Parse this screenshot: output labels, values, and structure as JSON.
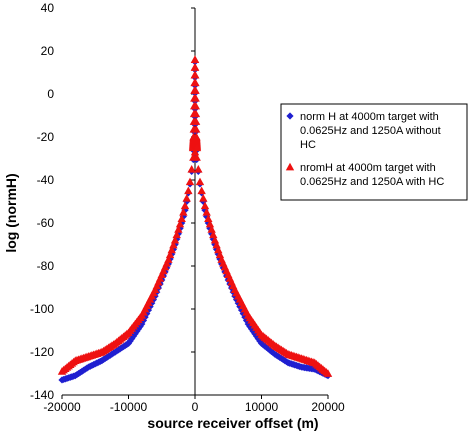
{
  "chart_data": {
    "type": "scatter",
    "xlabel": "source receiver offset (m)",
    "ylabel": "log (normH)",
    "xlim": [
      -20000,
      20000
    ],
    "ylim": [
      -140,
      40
    ],
    "xticks": [
      -20000,
      -10000,
      0,
      10000,
      20000
    ],
    "yticks": [
      -140,
      -120,
      -100,
      -80,
      -60,
      -40,
      -20,
      0,
      20,
      40
    ],
    "x_tick_labels": [
      "-20000",
      "-10000",
      "0",
      "10000",
      "20000"
    ],
    "y_tick_labels": [
      "-140",
      "-120",
      "-100",
      "-80",
      "-60",
      "-40",
      "-20",
      "0",
      "20",
      "40"
    ],
    "legend_position": "right",
    "series": [
      {
        "name": "norm H at 4000m target with 0.0625Hz and 1250A without HC",
        "legend_lines": [
          "norm H at 4000m target  with",
          "0.0625Hz and 1250A  without",
          "HC"
        ],
        "marker": "diamond",
        "color": "#1f1fd0",
        "x": [
          -20000,
          -18000,
          -16000,
          -14000,
          -12000,
          -10000,
          -8000,
          -6000,
          -4000,
          -3000,
          -2000,
          -1500,
          -1000,
          -700,
          -500,
          -300,
          0,
          300,
          500,
          700,
          1000,
          1500,
          2000,
          3000,
          4000,
          6000,
          8000,
          10000,
          12000,
          14000,
          16000,
          18000,
          20000
        ],
        "y": [
          -133,
          -131,
          -127,
          -124,
          -120,
          -116,
          -107,
          -94,
          -79,
          -70,
          -60,
          -54,
          -46,
          -41,
          -36,
          -31,
          -28,
          -31,
          -36,
          -41,
          -46,
          -54,
          -60,
          -70,
          -79,
          -94,
          -107,
          -116,
          -121,
          -125,
          -127,
          -128,
          -131
        ],
        "spike_x": [
          -300,
          -200,
          0,
          200,
          300
        ],
        "spike_y": [
          -26,
          -21,
          15,
          -21,
          -26
        ]
      },
      {
        "name": "normH at 4000m target with 0.0625Hz and 1250A with HC",
        "legend_lines": [
          "nromH at 4000m target with",
          "0.0625Hz and 1250A  with HC"
        ],
        "marker": "triangle",
        "color": "#ee1111",
        "x": [
          -20000,
          -18000,
          -16000,
          -14000,
          -12000,
          -10000,
          -8000,
          -6000,
          -4000,
          -3000,
          -2000,
          -1500,
          -1000,
          -700,
          -500,
          -300,
          0,
          300,
          500,
          700,
          1000,
          1500,
          2000,
          3000,
          4000,
          6000,
          8000,
          10000,
          12000,
          14000,
          16000,
          18000,
          20000
        ],
        "y": [
          -129,
          -124,
          -122,
          -120,
          -116,
          -111,
          -103,
          -91,
          -77,
          -68,
          -58,
          -52,
          -45,
          -40,
          -35,
          -30,
          -27,
          -30,
          -35,
          -40,
          -45,
          -52,
          -58,
          -68,
          -77,
          -91,
          -103,
          -112,
          -117,
          -121,
          -123,
          -125,
          -130
        ],
        "spike_x": [
          -300,
          -200,
          0,
          200,
          300
        ],
        "spike_y": [
          -25,
          -20,
          16,
          -20,
          -25
        ]
      }
    ]
  }
}
